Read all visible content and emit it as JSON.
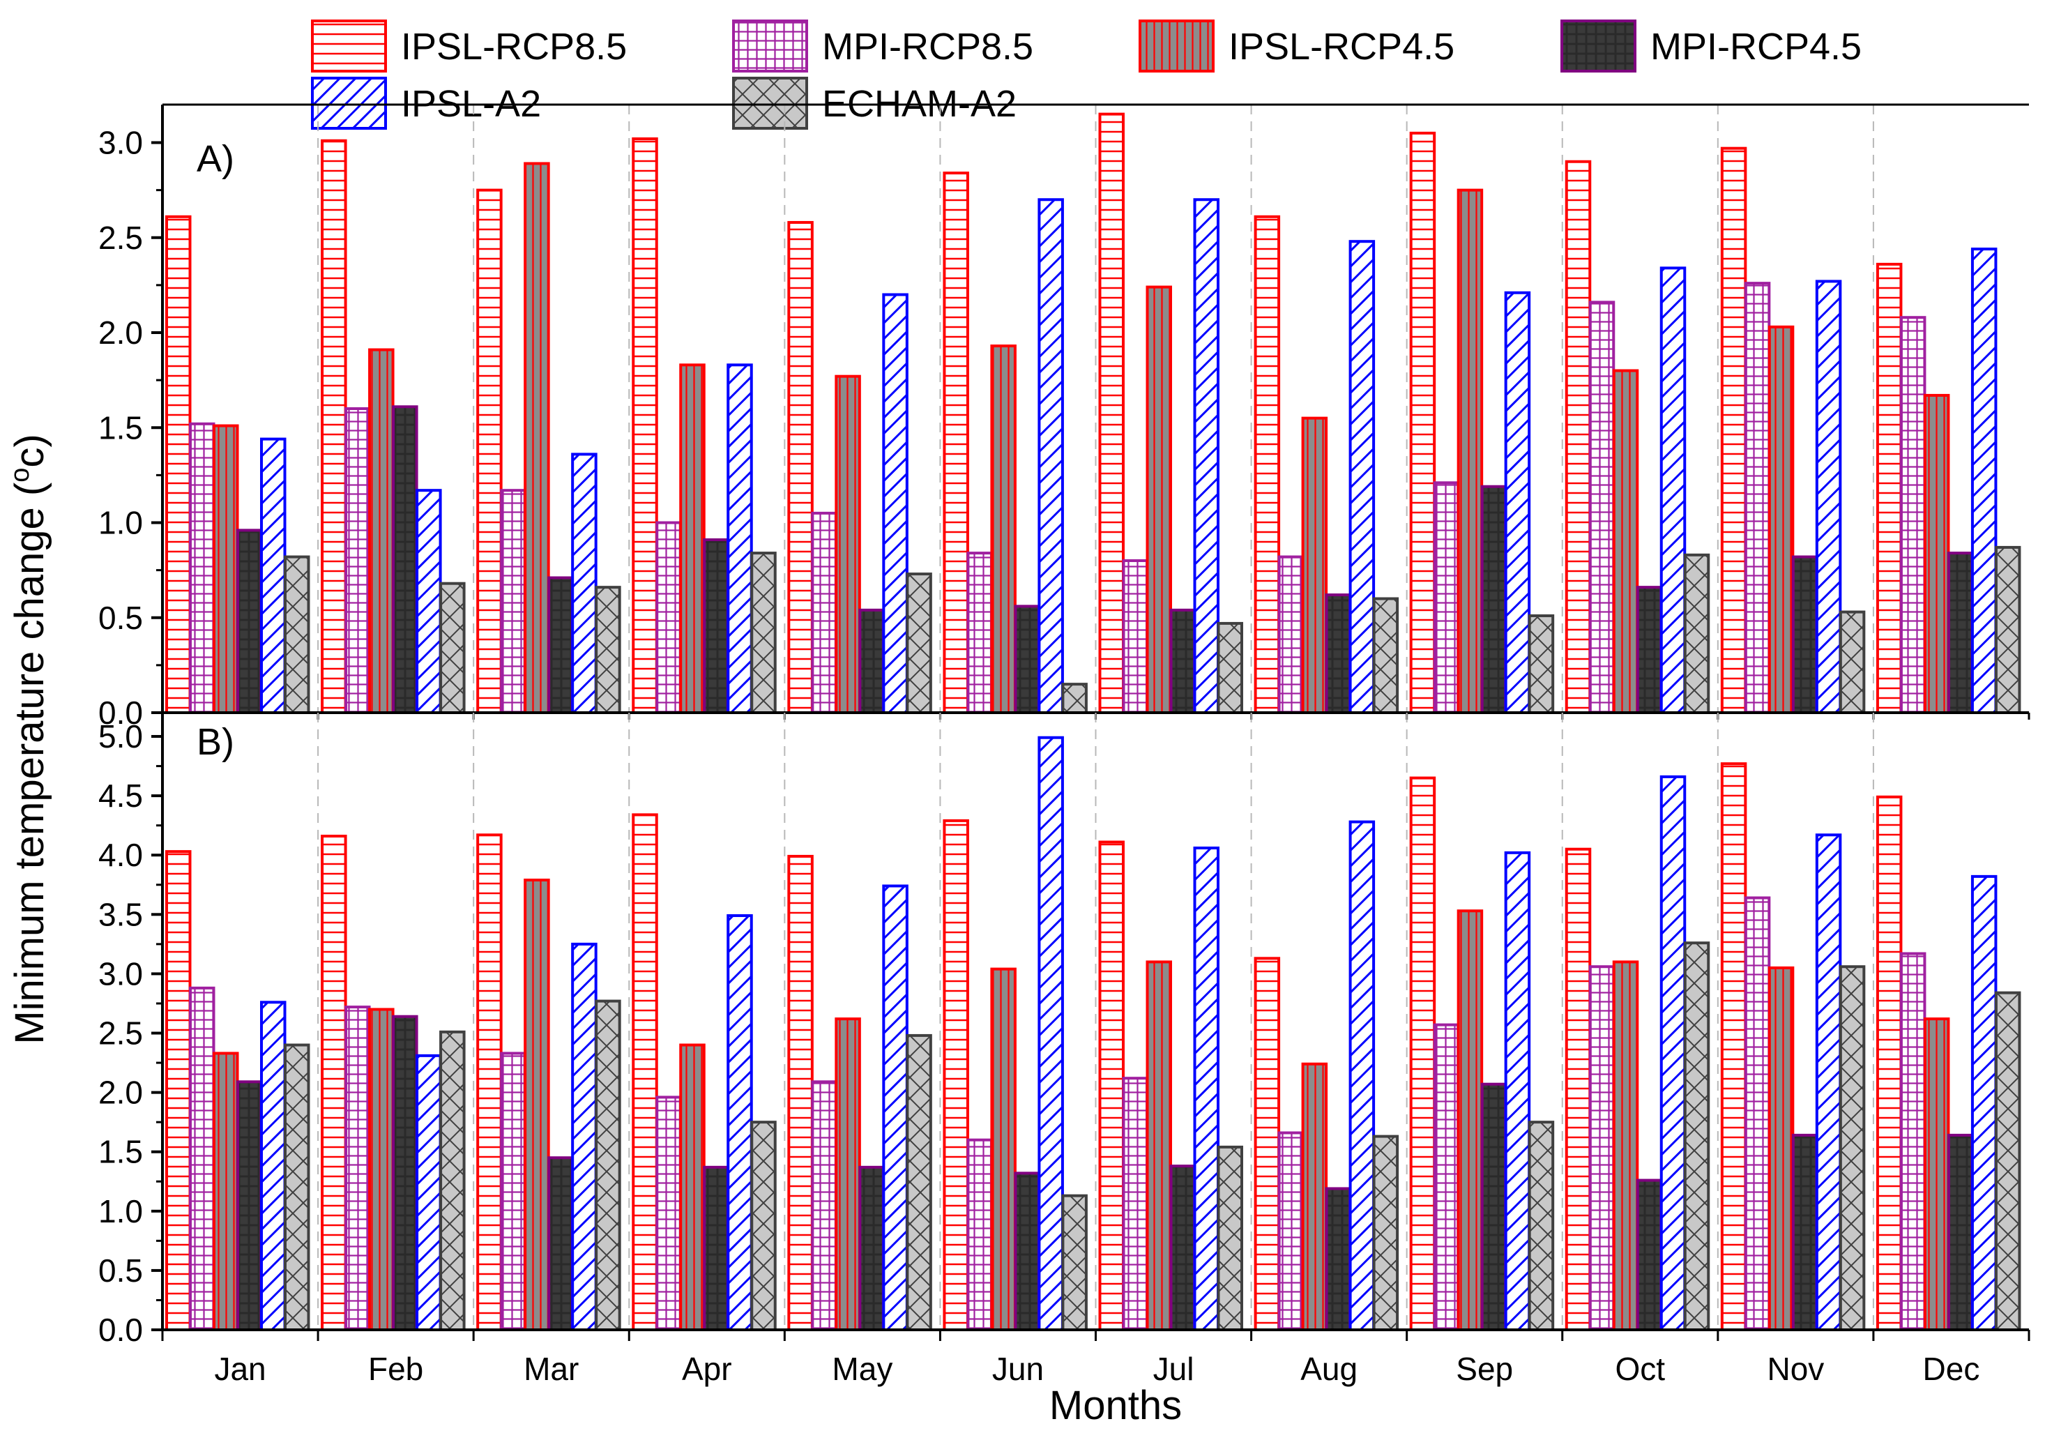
{
  "chart_data": {
    "type": "bar",
    "xlabel": "Months",
    "ylabel": "Minimum temperature change (°c)",
    "ylabel_main": "Minimum temperature change (",
    "ylabel_sup": "o",
    "ylabel_unit": "c)",
    "categories": [
      "Jan",
      "Feb",
      "Mar",
      "Apr",
      "May",
      "Jun",
      "Jul",
      "Aug",
      "Sep",
      "Oct",
      "Nov",
      "Dec"
    ],
    "legend_position": "top",
    "grid": "vertical dashed separators between months",
    "series_styles": [
      {
        "name": "IPSL-RCP8.5",
        "stroke": "#ff0000",
        "fill": "#ffffff",
        "pattern": "horizontal-lines"
      },
      {
        "name": "MPI-RCP8.5",
        "stroke": "#a020a0",
        "fill": "#ffffff",
        "pattern": "grid"
      },
      {
        "name": "IPSL-RCP4.5",
        "stroke": "#ff0000",
        "fill": "#8c8c8c",
        "pattern": "vertical-lines"
      },
      {
        "name": "MPI-RCP4.5",
        "stroke": "#800080",
        "fill": "#3a3a3a",
        "pattern": "dark-grid"
      },
      {
        "name": "IPSL-A2",
        "stroke": "#0000ff",
        "fill": "#ffffff",
        "pattern": "diagonal-lines"
      },
      {
        "name": "ECHAM-A2",
        "stroke": "#404040",
        "fill": "#c8c8c8",
        "pattern": "crosshatch"
      }
    ],
    "panels": [
      {
        "label": "A)",
        "ylim": [
          0,
          3.2
        ],
        "yticks": [
          "0.0",
          "0.5",
          "1.0",
          "1.5",
          "2.0",
          "2.5",
          "3.0"
        ],
        "ytick_values": [
          0,
          0.5,
          1.0,
          1.5,
          2.0,
          2.5,
          3.0
        ],
        "series": [
          {
            "name": "IPSL-RCP8.5",
            "values": [
              2.61,
              3.01,
              2.75,
              3.02,
              2.58,
              2.84,
              3.15,
              2.61,
              3.05,
              2.9,
              2.97,
              2.36
            ]
          },
          {
            "name": "MPI-RCP8.5",
            "values": [
              1.52,
              1.6,
              1.17,
              1.0,
              1.05,
              0.84,
              0.8,
              0.82,
              1.21,
              2.16,
              2.26,
              2.08
            ]
          },
          {
            "name": "IPSL-RCP4.5",
            "values": [
              1.51,
              1.91,
              2.89,
              1.83,
              1.77,
              1.93,
              2.24,
              1.55,
              2.75,
              1.8,
              2.03,
              1.67
            ]
          },
          {
            "name": "MPI-RCP4.5",
            "values": [
              0.96,
              1.61,
              0.71,
              0.91,
              0.54,
              0.56,
              0.54,
              0.62,
              1.19,
              0.66,
              0.82,
              0.84
            ]
          },
          {
            "name": "IPSL-A2",
            "values": [
              1.44,
              1.17,
              1.36,
              1.83,
              2.2,
              2.7,
              2.7,
              2.48,
              2.21,
              2.34,
              2.27,
              2.44
            ]
          },
          {
            "name": "ECHAM-A2",
            "values": [
              0.82,
              0.68,
              0.66,
              0.84,
              0.73,
              0.15,
              0.47,
              0.6,
              0.51,
              0.83,
              0.53,
              0.87
            ]
          }
        ]
      },
      {
        "label": "B)",
        "ylim": [
          0,
          5.2
        ],
        "yticks": [
          "0.0",
          "0.5",
          "1.0",
          "1.5",
          "2.0",
          "2.5",
          "3.0",
          "3.5",
          "4.0",
          "4.5",
          "5.0"
        ],
        "ytick_values": [
          0,
          0.5,
          1.0,
          1.5,
          2.0,
          2.5,
          3.0,
          3.5,
          4.0,
          4.5,
          5.0
        ],
        "series": [
          {
            "name": "IPSL-RCP8.5",
            "values": [
              4.03,
              4.16,
              4.17,
              4.34,
              3.99,
              4.29,
              4.11,
              3.13,
              4.65,
              4.05,
              4.77,
              4.49
            ]
          },
          {
            "name": "MPI-RCP8.5",
            "values": [
              2.88,
              2.72,
              2.33,
              1.96,
              2.09,
              1.6,
              2.12,
              1.66,
              2.57,
              3.06,
              3.64,
              3.17
            ]
          },
          {
            "name": "IPSL-RCP4.5",
            "values": [
              2.33,
              2.7,
              3.79,
              2.4,
              2.62,
              3.04,
              3.1,
              2.24,
              3.53,
              3.1,
              3.05,
              2.62
            ]
          },
          {
            "name": "MPI-RCP4.5",
            "values": [
              2.09,
              2.64,
              1.45,
              1.37,
              1.37,
              1.32,
              1.38,
              1.19,
              2.07,
              1.26,
              1.64,
              1.64
            ]
          },
          {
            "name": "IPSL-A2",
            "values": [
              2.76,
              2.31,
              3.25,
              3.49,
              3.74,
              4.99,
              4.06,
              4.28,
              4.02,
              4.66,
              4.17,
              3.82
            ]
          },
          {
            "name": "ECHAM-A2",
            "values": [
              2.4,
              2.51,
              2.77,
              1.75,
              2.48,
              1.13,
              1.54,
              1.63,
              1.75,
              3.26,
              3.06,
              2.84
            ]
          }
        ]
      }
    ]
  }
}
